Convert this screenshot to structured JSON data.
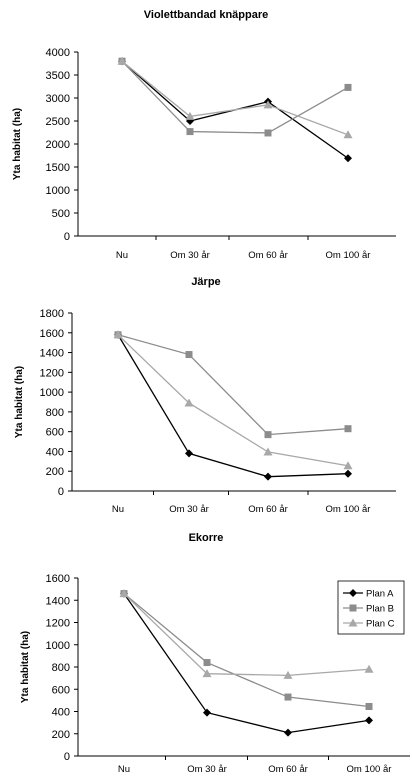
{
  "chart_data": [
    {
      "type": "line",
      "title": "Violettbandad knäppare",
      "ylabel": "Yta habitat (ha)",
      "xlabel": "",
      "categories": [
        "Nu",
        "Om 30 år",
        "Om 60 år",
        "Om 100 år"
      ],
      "ylim": [
        0,
        4000
      ],
      "yticks": [
        "0",
        "500",
        "1000",
        "1500",
        "2000",
        "2500",
        "3000",
        "3500",
        "4000"
      ],
      "grid": false,
      "legend": null,
      "series": [
        {
          "key": "A",
          "values": [
            3800,
            2500,
            2920,
            1690
          ]
        },
        {
          "key": "B",
          "values": [
            3800,
            2270,
            2240,
            3230
          ]
        },
        {
          "key": "C",
          "values": [
            3800,
            2600,
            2850,
            2200
          ]
        }
      ]
    },
    {
      "type": "line",
      "title": "Järpe",
      "ylabel": "Yta habitat (ha)",
      "xlabel": "",
      "categories": [
        "Nu",
        "Om 30 år",
        "Om 60 år",
        "Om 100 år"
      ],
      "ylim": [
        0,
        1800
      ],
      "yticks": [
        "0",
        "200",
        "400",
        "600",
        "800",
        "1000",
        "1200",
        "1400",
        "1600",
        "1800"
      ],
      "grid": false,
      "legend": null,
      "series": [
        {
          "key": "A",
          "values": [
            1580,
            380,
            145,
            175
          ]
        },
        {
          "key": "B",
          "values": [
            1580,
            1380,
            570,
            630
          ]
        },
        {
          "key": "C",
          "values": [
            1580,
            890,
            395,
            255
          ]
        }
      ]
    },
    {
      "type": "line",
      "title": "Ekorre",
      "ylabel": "Yta habitat (ha)",
      "xlabel": "",
      "categories": [
        "Nu",
        "Om 30 år",
        "Om 60 år",
        "Om 100 år"
      ],
      "ylim": [
        0,
        1600
      ],
      "yticks": [
        "0",
        "200",
        "400",
        "600",
        "800",
        "1000",
        "1200",
        "1400",
        "1600"
      ],
      "grid": false,
      "legend": "top-right",
      "series": [
        {
          "key": "A",
          "name": "Plan A",
          "values": [
            1460,
            390,
            210,
            320
          ]
        },
        {
          "key": "B",
          "name": "Plan B",
          "values": [
            1460,
            840,
            530,
            445
          ]
        },
        {
          "key": "C",
          "name": "Plan C",
          "values": [
            1460,
            740,
            725,
            780
          ]
        }
      ]
    }
  ],
  "series_style": {
    "A": {
      "color": "#000000",
      "marker": "diamond"
    },
    "B": {
      "color": "#8c8c8c",
      "marker": "square"
    },
    "C": {
      "color": "#a8a8a8",
      "marker": "triangle"
    }
  }
}
